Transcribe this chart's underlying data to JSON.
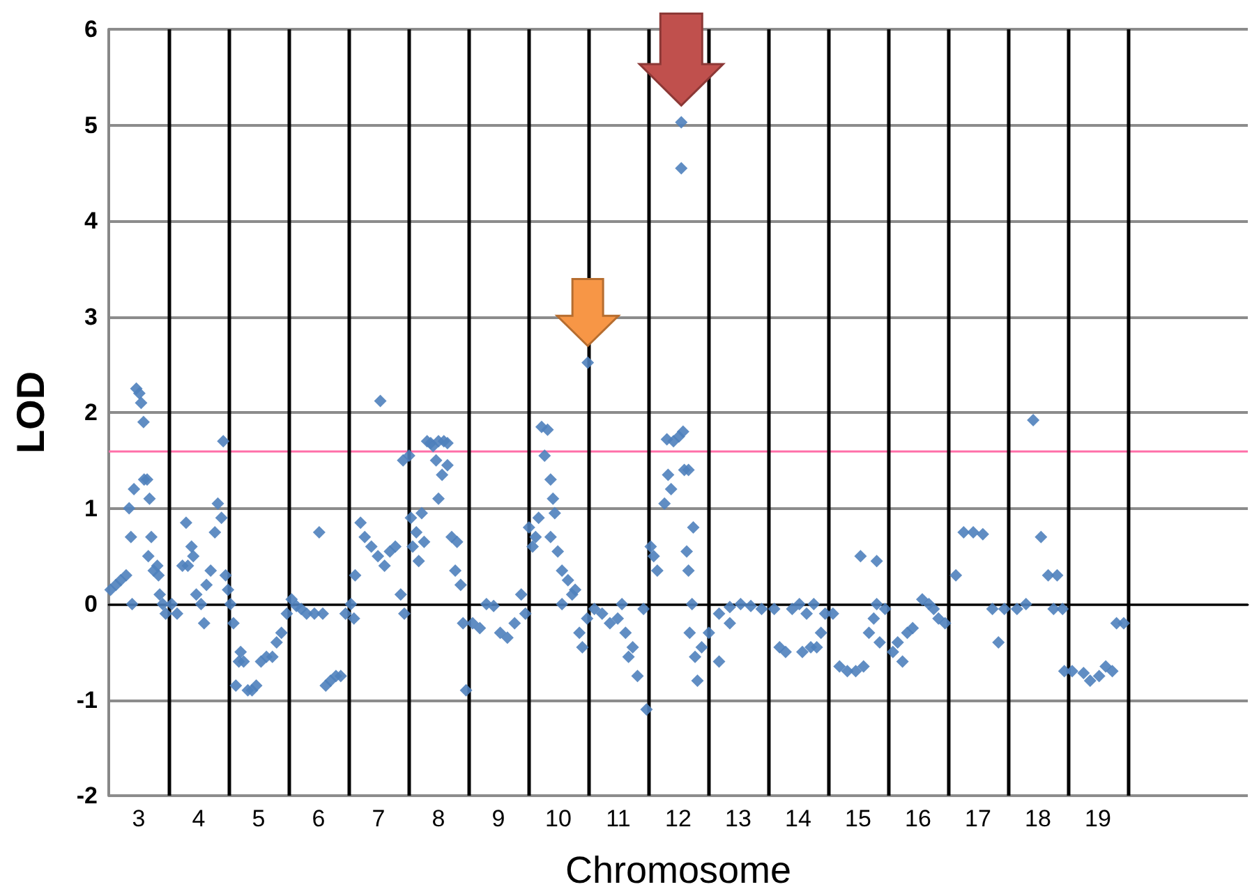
{
  "chart_data": {
    "type": "scatter",
    "xlabel": "Chromosome",
    "ylabel": "LOD",
    "xlim": [
      2.5,
      21.5
    ],
    "ylim": [
      -2,
      6
    ],
    "yticks": [
      -2,
      -1,
      0,
      1,
      2,
      3,
      4,
      5,
      6
    ],
    "xticks": [
      3,
      4,
      5,
      6,
      7,
      8,
      9,
      10,
      11,
      12,
      13,
      14,
      15,
      16,
      17,
      18,
      19
    ],
    "grid": "y",
    "marker": "diamond",
    "ref_lines": [
      {
        "axis": "y",
        "value": 1.6,
        "color": "#ff6fa8"
      },
      {
        "axis": "x",
        "value": 3.5,
        "color": "#000000"
      },
      {
        "axis": "x",
        "value": 4.5,
        "color": "#000000"
      },
      {
        "axis": "x",
        "value": 5.5,
        "color": "#000000"
      },
      {
        "axis": "x",
        "value": 6.5,
        "color": "#000000"
      },
      {
        "axis": "x",
        "value": 7.5,
        "color": "#000000"
      },
      {
        "axis": "x",
        "value": 8.5,
        "color": "#000000"
      },
      {
        "axis": "x",
        "value": 9.5,
        "color": "#000000"
      },
      {
        "axis": "x",
        "value": 10.5,
        "color": "#000000"
      },
      {
        "axis": "x",
        "value": 11.5,
        "color": "#000000"
      },
      {
        "axis": "x",
        "value": 12.5,
        "color": "#000000"
      },
      {
        "axis": "x",
        "value": 13.5,
        "color": "#000000"
      },
      {
        "axis": "x",
        "value": 14.5,
        "color": "#000000"
      },
      {
        "axis": "x",
        "value": 15.5,
        "color": "#000000"
      },
      {
        "axis": "x",
        "value": 16.5,
        "color": "#000000"
      },
      {
        "axis": "x",
        "value": 17.5,
        "color": "#000000"
      },
      {
        "axis": "x",
        "value": 18.5,
        "color": "#000000"
      },
      {
        "axis": "x",
        "value": 19.5,
        "color": "#000000"
      }
    ],
    "series": [
      {
        "color": "#4f81bd",
        "x": [
          2.53,
          2.62,
          2.7,
          2.79,
          2.84,
          2.87,
          2.89,
          2.92,
          2.96,
          3.01,
          3.04,
          3.08,
          3.09,
          3.14,
          3.18,
          3.21,
          3.16,
          3.25,
          3.31,
          3.35,
          3.4,
          3.45,
          3.33,
          3.55,
          3.64,
          3.73,
          3.79,
          3.82,
          3.88,
          3.91,
          3.96,
          4.04,
          4.09,
          4.13,
          4.2,
          4.27,
          4.32,
          4.38,
          4.41,
          4.45,
          4.49,
          4.53,
          4.58,
          4.62,
          4.67,
          4.7,
          4.75,
          4.82,
          4.89,
          4.96,
          5.04,
          5.13,
          5.23,
          5.3,
          5.38,
          5.47,
          5.55,
          5.63,
          5.71,
          5.8,
          5.93,
          6.01,
          6.07,
          6.12,
          6.2,
          6.29,
          6.37,
          6.45,
          6.54,
          6.59,
          6.61,
          6.7,
          6.77,
          6.88,
          6.99,
          7.03,
          7.1,
          7.19,
          7.28,
          7.37,
          7.43,
          7.41,
          7.51,
          7.54,
          7.57,
          7.63,
          7.67,
          7.72,
          7.76,
          7.81,
          7.87,
          7.91,
          8.0,
          8.09,
          8.15,
          7.96,
          8.06,
          8.15,
          8.0,
          8.22,
          8.31,
          8.37,
          8.28,
          8.41,
          8.46,
          8.57,
          8.69,
          8.8,
          8.92,
          9.03,
          9.15,
          9.27,
          9.38,
          9.45,
          9.51,
          9.57,
          9.62,
          9.67,
          9.72,
          9.82,
          9.77,
          9.87,
          9.91,
          9.94,
          9.87,
          9.99,
          10.06,
          10.16,
          10.23,
          10.28,
          10.35,
          10.4,
          10.48,
          10.06,
          10.49,
          10.6,
          10.73,
          10.86,
          10.99,
          11.12,
          11.24,
          11.32,
          11.42,
          11.47,
          11.06,
          11.17,
          11.54,
          11.59,
          11.65,
          11.77,
          11.83,
          11.88,
          11.81,
          11.92,
          12.01,
          12.08,
          12.1,
          12.05,
          12.05,
          12.17,
          12.14,
          12.17,
          12.19,
          12.25,
          12.23,
          12.28,
          12.32,
          12.39,
          12.51,
          12.68,
          12.86,
          13.04,
          13.21,
          13.39,
          12.68,
          12.86,
          13.6,
          13.69,
          13.79,
          13.9,
          14.02,
          14.14,
          14.21,
          14.31,
          14.38,
          14.45,
          14.07,
          14.26,
          14.58,
          14.69,
          14.82,
          14.96,
          15.09,
          15.04,
          15.31,
          15.18,
          15.26,
          15.36,
          15.31,
          15.45,
          15.58,
          15.66,
          15.74,
          15.82,
          15.91,
          16.07,
          16.18,
          16.26,
          16.34,
          16.45,
          16.63,
          16.76,
          16.92,
          17.08,
          17.24,
          17.34,
          17.44,
          17.65,
          17.8,
          17.92,
          18.05,
          18.17,
          18.32,
          18.26,
          18.41,
          18.44,
          18.57,
          18.76,
          18.87,
          19.02,
          19.13,
          19.24,
          19.31,
          19.43
        ],
        "values": [
          0.15,
          0.2,
          0.25,
          0.3,
          1.0,
          0.7,
          0.0,
          1.2,
          2.25,
          2.2,
          2.1,
          1.9,
          1.3,
          1.3,
          1.1,
          0.7,
          0.5,
          0.35,
          0.4,
          0.1,
          0.0,
          -0.1,
          0.3,
          0.0,
          -0.1,
          0.4,
          0.85,
          0.4,
          0.6,
          0.5,
          0.1,
          0.0,
          -0.2,
          0.2,
          0.35,
          0.75,
          1.05,
          0.9,
          1.7,
          0.3,
          0.15,
          0.0,
          -0.2,
          -0.85,
          -0.6,
          -0.5,
          -0.6,
          -0.9,
          -0.9,
          -0.85,
          -0.6,
          -0.55,
          -0.55,
          -0.4,
          -0.3,
          -0.1,
          0.05,
          -0.02,
          -0.05,
          -0.1,
          -0.1,
          0.75,
          -0.1,
          -0.85,
          -0.8,
          -0.75,
          -0.75,
          -0.1,
          0.0,
          -0.15,
          0.3,
          0.85,
          0.7,
          0.6,
          0.5,
          2.12,
          0.4,
          0.55,
          0.6,
          0.1,
          -0.1,
          1.5,
          1.55,
          0.9,
          0.6,
          0.75,
          0.45,
          0.95,
          0.65,
          1.7,
          1.68,
          1.65,
          1.7,
          1.7,
          1.68,
          1.5,
          1.35,
          1.45,
          1.1,
          0.7,
          0.65,
          0.2,
          0.35,
          -0.2,
          -0.9,
          -0.2,
          -0.25,
          0.0,
          -0.02,
          -0.3,
          -0.35,
          -0.2,
          0.1,
          -0.1,
          0.8,
          0.6,
          0.7,
          0.9,
          1.85,
          1.82,
          1.55,
          1.3,
          1.1,
          0.95,
          0.7,
          0.55,
          0.35,
          0.25,
          0.1,
          0.15,
          -0.3,
          -0.45,
          -0.15,
          0.0,
          2.52,
          -0.05,
          -0.1,
          -0.2,
          -0.15,
          -0.3,
          -0.45,
          -0.75,
          -0.05,
          -1.1,
          0.0,
          -0.55,
          0.6,
          0.5,
          0.35,
          1.05,
          1.35,
          1.2,
          1.72,
          1.7,
          1.75,
          1.8,
          1.4,
          5.03,
          4.55,
          1.4,
          0.55,
          0.35,
          -0.3,
          0.8,
          0.0,
          -0.55,
          -0.8,
          -0.45,
          -0.3,
          -0.1,
          -0.03,
          0.0,
          -0.02,
          -0.05,
          -0.6,
          -0.2,
          -0.05,
          -0.45,
          -0.5,
          -0.05,
          0.0,
          -0.1,
          -0.45,
          -0.45,
          -0.3,
          -0.1,
          -0.5,
          0.0,
          -0.1,
          -0.65,
          -0.7,
          -0.7,
          -0.65,
          0.5,
          0.45,
          -0.3,
          -0.15,
          -0.4,
          0.0,
          -0.05,
          -0.5,
          -0.4,
          -0.6,
          -0.3,
          -0.25,
          0.05,
          0.0,
          -0.05,
          -0.15,
          -0.2,
          0.3,
          0.75,
          0.75,
          0.73,
          -0.05,
          -0.4,
          -0.05,
          -0.05,
          0.0,
          1.92,
          0.7,
          0.3,
          0.3,
          -0.05,
          -0.05,
          -0.7,
          -0.7,
          -0.72,
          -0.8,
          -0.75,
          -0.65,
          -0.7,
          -0.2,
          -0.2
        ]
      }
    ]
  }
}
